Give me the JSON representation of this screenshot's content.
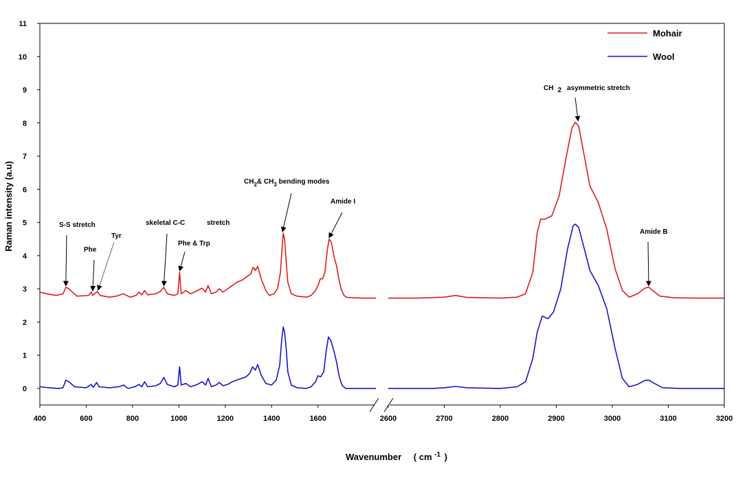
{
  "chart_data": {
    "type": "line",
    "ylabel": "Raman intensity (a.u)",
    "xlabel_main": "Wavenumber",
    "xlabel_unit": "( cm",
    "xlabel_exp": "-1",
    "xlabel_close": ")",
    "ylim": [
      -0.5,
      11
    ],
    "yticks": [
      "0",
      "1",
      "2",
      "3",
      "4",
      "5",
      "6",
      "7",
      "8",
      "9",
      "10",
      "11"
    ],
    "x_segments": [
      {
        "xlim": [
          400,
          1850
        ],
        "xticks": [
          "400",
          "600",
          "800",
          "1000",
          "1200",
          "1400",
          "1600"
        ]
      },
      {
        "xlim": [
          2600,
          3200
        ],
        "xticks": [
          "2600",
          "2700",
          "2800",
          "2900",
          "3000",
          "3100",
          "3200"
        ]
      }
    ],
    "grid": false,
    "legend_position": "top-right",
    "series": [
      {
        "name": "Mohair",
        "color": "#e01b1b",
        "points": [
          [
            400,
            2.9
          ],
          [
            430,
            2.85
          ],
          [
            470,
            2.8
          ],
          [
            500,
            2.85
          ],
          [
            512,
            3.05
          ],
          [
            525,
            3.0
          ],
          [
            560,
            2.78
          ],
          [
            610,
            2.8
          ],
          [
            622,
            2.9
          ],
          [
            628,
            2.8
          ],
          [
            648,
            2.92
          ],
          [
            660,
            2.8
          ],
          [
            700,
            2.75
          ],
          [
            730,
            2.78
          ],
          [
            760,
            2.85
          ],
          [
            790,
            2.75
          ],
          [
            815,
            2.8
          ],
          [
            828,
            2.9
          ],
          [
            840,
            2.82
          ],
          [
            852,
            2.95
          ],
          [
            865,
            2.82
          ],
          [
            900,
            2.85
          ],
          [
            920,
            2.92
          ],
          [
            935,
            3.05
          ],
          [
            950,
            2.85
          ],
          [
            980,
            2.8
          ],
          [
            995,
            2.85
          ],
          [
            1003,
            3.5
          ],
          [
            1010,
            2.85
          ],
          [
            1030,
            2.95
          ],
          [
            1050,
            2.85
          ],
          [
            1080,
            2.95
          ],
          [
            1100,
            3.02
          ],
          [
            1115,
            2.9
          ],
          [
            1126,
            3.1
          ],
          [
            1140,
            2.85
          ],
          [
            1160,
            2.9
          ],
          [
            1175,
            3.0
          ],
          [
            1190,
            2.9
          ],
          [
            1210,
            3.0
          ],
          [
            1230,
            3.1
          ],
          [
            1250,
            3.2
          ],
          [
            1270,
            3.25
          ],
          [
            1290,
            3.35
          ],
          [
            1310,
            3.45
          ],
          [
            1320,
            3.65
          ],
          [
            1330,
            3.55
          ],
          [
            1340,
            3.68
          ],
          [
            1355,
            3.3
          ],
          [
            1375,
            2.95
          ],
          [
            1390,
            2.8
          ],
          [
            1410,
            2.85
          ],
          [
            1425,
            3.0
          ],
          [
            1438,
            3.5
          ],
          [
            1445,
            4.2
          ],
          [
            1450,
            4.68
          ],
          [
            1456,
            4.5
          ],
          [
            1463,
            3.8
          ],
          [
            1470,
            3.2
          ],
          [
            1485,
            2.85
          ],
          [
            1510,
            2.78
          ],
          [
            1550,
            2.75
          ],
          [
            1570,
            2.8
          ],
          [
            1590,
            2.95
          ],
          [
            1600,
            3.1
          ],
          [
            1610,
            3.3
          ],
          [
            1620,
            3.3
          ],
          [
            1630,
            3.5
          ],
          [
            1640,
            4.15
          ],
          [
            1648,
            4.5
          ],
          [
            1658,
            4.4
          ],
          [
            1670,
            3.95
          ],
          [
            1680,
            3.7
          ],
          [
            1690,
            3.3
          ],
          [
            1700,
            3.0
          ],
          [
            1712,
            2.8
          ],
          [
            1725,
            2.74
          ],
          [
            1760,
            2.73
          ],
          [
            1800,
            2.72
          ],
          [
            1850,
            2.72
          ],
          [
            2600,
            2.72
          ],
          [
            2650,
            2.72
          ],
          [
            2700,
            2.75
          ],
          [
            2720,
            2.8
          ],
          [
            2740,
            2.74
          ],
          [
            2800,
            2.72
          ],
          [
            2830,
            2.75
          ],
          [
            2845,
            2.85
          ],
          [
            2858,
            3.5
          ],
          [
            2866,
            4.7
          ],
          [
            2872,
            5.1
          ],
          [
            2880,
            5.1
          ],
          [
            2892,
            5.2
          ],
          [
            2905,
            5.8
          ],
          [
            2918,
            7.0
          ],
          [
            2928,
            7.85
          ],
          [
            2934,
            8.02
          ],
          [
            2940,
            7.9
          ],
          [
            2950,
            7.0
          ],
          [
            2960,
            6.1
          ],
          [
            2975,
            5.6
          ],
          [
            2990,
            4.8
          ],
          [
            3005,
            3.6
          ],
          [
            3018,
            2.95
          ],
          [
            3030,
            2.75
          ],
          [
            3045,
            2.85
          ],
          [
            3058,
            3.02
          ],
          [
            3065,
            3.05
          ],
          [
            3072,
            2.95
          ],
          [
            3085,
            2.78
          ],
          [
            3110,
            2.73
          ],
          [
            3150,
            2.72
          ],
          [
            3200,
            2.72
          ]
        ]
      },
      {
        "name": "Wool",
        "color": "#1414c8",
        "points": [
          [
            400,
            0.05
          ],
          [
            440,
            0.02
          ],
          [
            480,
            0.0
          ],
          [
            500,
            0.02
          ],
          [
            512,
            0.25
          ],
          [
            525,
            0.2
          ],
          [
            550,
            0.05
          ],
          [
            600,
            0.02
          ],
          [
            622,
            0.12
          ],
          [
            630,
            0.03
          ],
          [
            645,
            0.18
          ],
          [
            655,
            0.05
          ],
          [
            700,
            0.02
          ],
          [
            740,
            0.05
          ],
          [
            762,
            0.1
          ],
          [
            780,
            0.0
          ],
          [
            810,
            0.05
          ],
          [
            828,
            0.12
          ],
          [
            840,
            0.05
          ],
          [
            852,
            0.2
          ],
          [
            865,
            0.05
          ],
          [
            900,
            0.08
          ],
          [
            920,
            0.15
          ],
          [
            935,
            0.33
          ],
          [
            950,
            0.12
          ],
          [
            980,
            0.05
          ],
          [
            995,
            0.1
          ],
          [
            1003,
            0.65
          ],
          [
            1010,
            0.1
          ],
          [
            1030,
            0.15
          ],
          [
            1050,
            0.05
          ],
          [
            1080,
            0.12
          ],
          [
            1100,
            0.2
          ],
          [
            1115,
            0.1
          ],
          [
            1126,
            0.3
          ],
          [
            1140,
            0.05
          ],
          [
            1160,
            0.1
          ],
          [
            1175,
            0.18
          ],
          [
            1190,
            0.08
          ],
          [
            1210,
            0.12
          ],
          [
            1230,
            0.2
          ],
          [
            1250,
            0.25
          ],
          [
            1270,
            0.3
          ],
          [
            1290,
            0.35
          ],
          [
            1305,
            0.45
          ],
          [
            1318,
            0.65
          ],
          [
            1330,
            0.55
          ],
          [
            1340,
            0.72
          ],
          [
            1355,
            0.4
          ],
          [
            1375,
            0.15
          ],
          [
            1400,
            0.1
          ],
          [
            1420,
            0.25
          ],
          [
            1435,
            0.7
          ],
          [
            1443,
            1.4
          ],
          [
            1450,
            1.85
          ],
          [
            1456,
            1.7
          ],
          [
            1463,
            1.2
          ],
          [
            1470,
            0.5
          ],
          [
            1485,
            0.1
          ],
          [
            1510,
            0.02
          ],
          [
            1550,
            0.0
          ],
          [
            1570,
            0.05
          ],
          [
            1590,
            0.2
          ],
          [
            1600,
            0.38
          ],
          [
            1612,
            0.35
          ],
          [
            1625,
            0.5
          ],
          [
            1635,
            1.1
          ],
          [
            1645,
            1.55
          ],
          [
            1655,
            1.45
          ],
          [
            1668,
            1.15
          ],
          [
            1680,
            0.8
          ],
          [
            1692,
            0.35
          ],
          [
            1705,
            0.08
          ],
          [
            1720,
            0.0
          ],
          [
            1780,
            0.0
          ],
          [
            1850,
            0.0
          ],
          [
            2600,
            0.0
          ],
          [
            2680,
            0.0
          ],
          [
            2700,
            0.02
          ],
          [
            2720,
            0.06
          ],
          [
            2740,
            0.02
          ],
          [
            2800,
            0.0
          ],
          [
            2830,
            0.05
          ],
          [
            2845,
            0.2
          ],
          [
            2858,
            0.9
          ],
          [
            2866,
            1.7
          ],
          [
            2875,
            2.18
          ],
          [
            2885,
            2.1
          ],
          [
            2895,
            2.3
          ],
          [
            2908,
            3.0
          ],
          [
            2920,
            4.2
          ],
          [
            2930,
            4.9
          ],
          [
            2934,
            4.95
          ],
          [
            2940,
            4.85
          ],
          [
            2950,
            4.2
          ],
          [
            2960,
            3.55
          ],
          [
            2975,
            3.1
          ],
          [
            2990,
            2.4
          ],
          [
            3005,
            1.2
          ],
          [
            3018,
            0.3
          ],
          [
            3030,
            0.05
          ],
          [
            3045,
            0.12
          ],
          [
            3058,
            0.24
          ],
          [
            3065,
            0.25
          ],
          [
            3075,
            0.15
          ],
          [
            3090,
            0.02
          ],
          [
            3120,
            0.0
          ],
          [
            3200,
            0.0
          ]
        ]
      }
    ],
    "annotations": [
      {
        "label": "S-S stretch",
        "x": 512,
        "y": 3.05
      },
      {
        "label": "Phe",
        "x": 628,
        "y": 2.9
      },
      {
        "label": "Tyr",
        "x": 648,
        "y": 2.92
      },
      {
        "label": "skeletal C-C",
        "x": 935,
        "y": 3.05
      },
      {
        "label": "stretch",
        "x": null,
        "y": null
      },
      {
        "label": "Phe & Trp",
        "x": 1003,
        "y": 3.5
      },
      {
        "label": "Amide I",
        "x": 1648,
        "y": 4.5
      },
      {
        "label": "Amide B",
        "x": 3065,
        "y": 3.05
      }
    ],
    "ann_ch_bending": {
      "p1": "CH",
      "s1": "2",
      "p2": "& CH",
      "s2": "3",
      "p3": " bending modes",
      "x": 1450,
      "y": 4.68
    },
    "ann_ch_asym": {
      "p1": "CH",
      "s1": "2",
      "p2": "asymmetric stretch",
      "x": 2934,
      "y": 8.02
    }
  }
}
